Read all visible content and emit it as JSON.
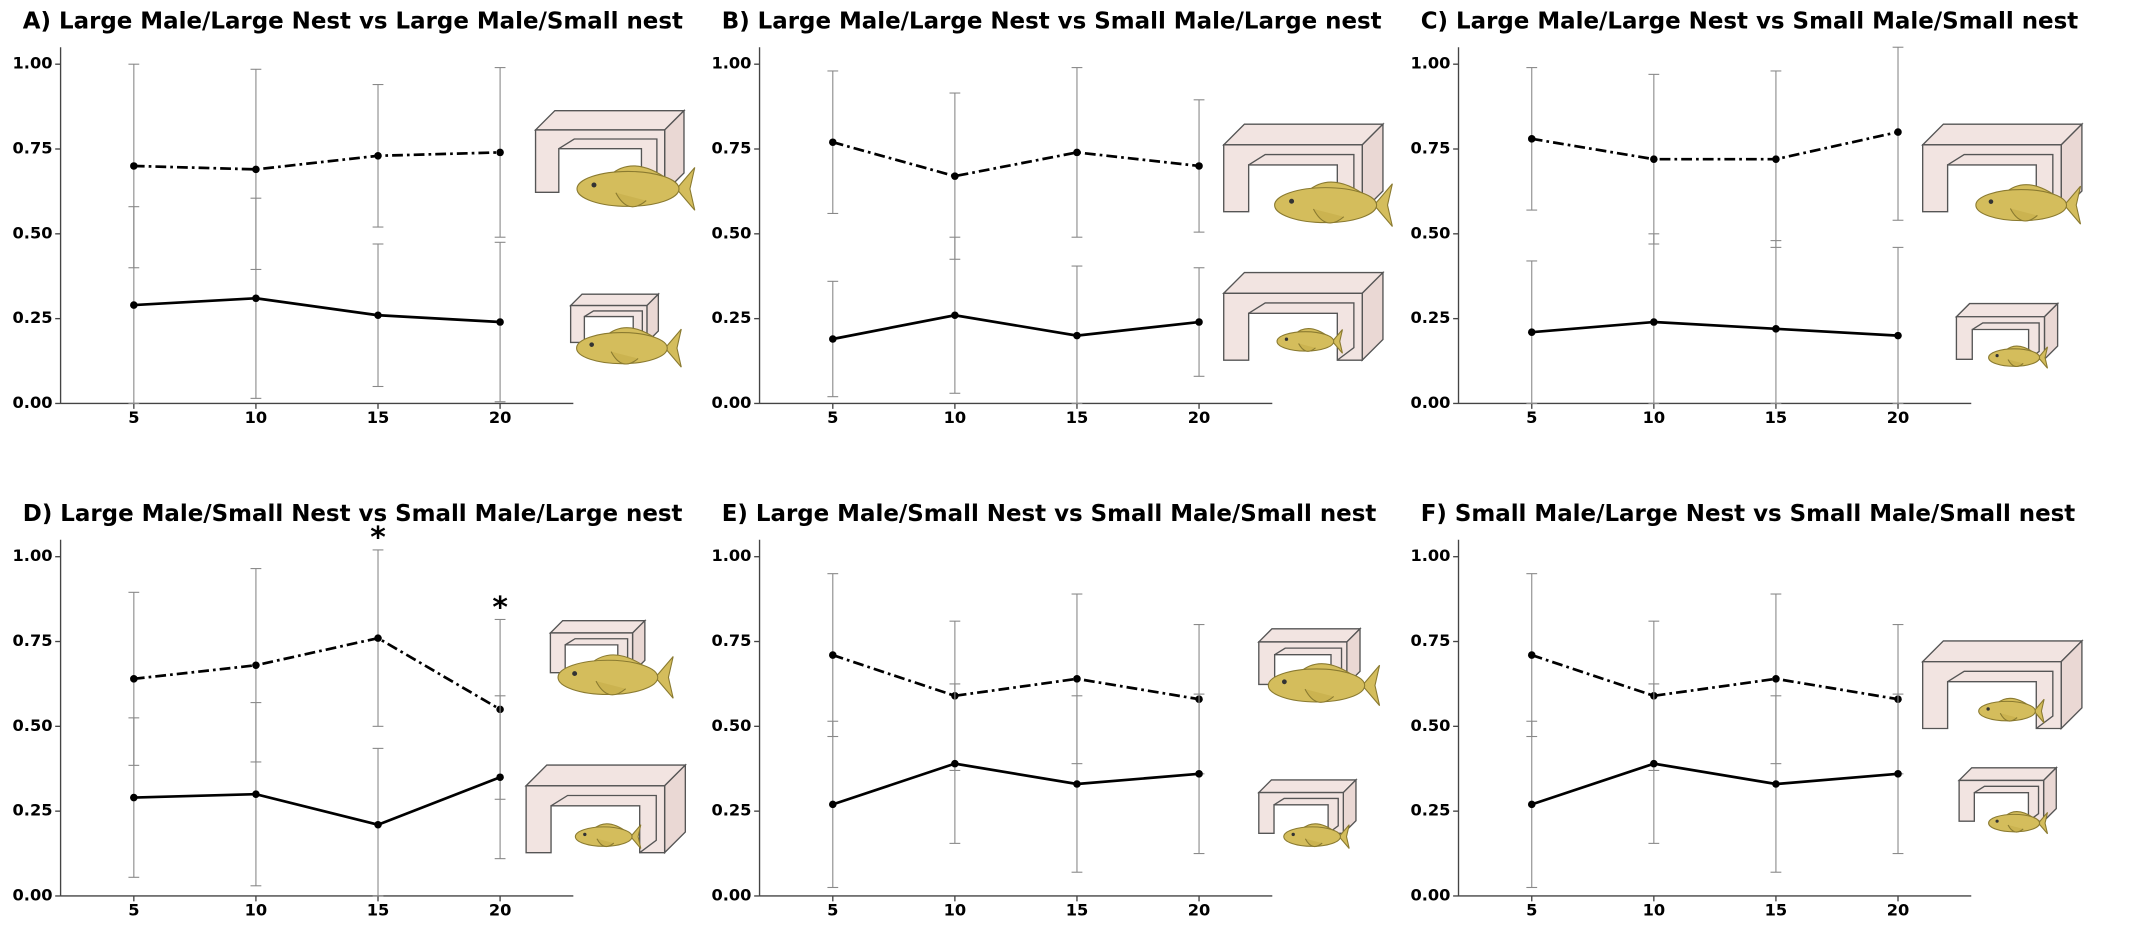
{
  "chart_data": [
    {
      "type": "line",
      "title": "A) Large Male/Large Nest vs Large Male/Small nest",
      "x": [
        5,
        10,
        15,
        20
      ],
      "xlim": [
        2,
        23
      ],
      "xticks": [
        5,
        10,
        15,
        20
      ],
      "ylim": [
        0,
        1.05
      ],
      "yticks": [
        {
          "value": 0,
          "label": "0.00"
        },
        {
          "value": 0.25,
          "label": "0.25"
        },
        {
          "value": 0.5,
          "label": "0.50"
        },
        {
          "value": 0.75,
          "label": "0.75"
        },
        {
          "value": 1,
          "label": "1.00"
        }
      ],
      "series": [
        {
          "color": "#000000",
          "dash": "dashdot",
          "values": [
            0.7,
            0.69,
            0.73,
            0.74
          ],
          "errors": [
            0.3,
            0.295,
            0.21,
            0.25
          ]
        },
        {
          "color": "#000000",
          "dash": "solid",
          "values": [
            0.29,
            0.31,
            0.26,
            0.24
          ],
          "errors": [
            0.29,
            0.295,
            0.21,
            0.235
          ]
        }
      ]
    },
    {
      "type": "line",
      "title": "B) Large Male/Large Nest vs Small Male/Large nest",
      "x": [
        5,
        10,
        15,
        20
      ],
      "xlim": [
        2,
        23
      ],
      "xticks": [
        5,
        10,
        15,
        20
      ],
      "ylim": [
        0,
        1.05
      ],
      "yticks": [
        {
          "value": 0,
          "label": "0.00"
        },
        {
          "value": 0.25,
          "label": "0.25"
        },
        {
          "value": 0.5,
          "label": "0.50"
        },
        {
          "value": 0.75,
          "label": "0.75"
        },
        {
          "value": 1,
          "label": "1.00"
        }
      ],
      "series": [
        {
          "color": "#000000",
          "dash": "dashdot",
          "values": [
            0.77,
            0.67,
            0.74,
            0.7
          ],
          "errors": [
            0.21,
            0.245,
            0.25,
            0.195
          ]
        },
        {
          "color": "#000000",
          "dash": "solid",
          "values": [
            0.19,
            0.26,
            0.2,
            0.24
          ],
          "errors": [
            0.17,
            0.23,
            0.205,
            0.16
          ]
        }
      ]
    },
    {
      "type": "line",
      "title": "C) Large Male/Large Nest vs Small Male/Small nest",
      "x": [
        5,
        10,
        15,
        20
      ],
      "xlim": [
        2,
        23
      ],
      "xticks": [
        5,
        10,
        15,
        20
      ],
      "ylim": [
        0,
        1.05
      ],
      "yticks": [
        {
          "value": 0,
          "label": "0.00"
        },
        {
          "value": 0.25,
          "label": "0.25"
        },
        {
          "value": 0.5,
          "label": "0.50"
        },
        {
          "value": 0.75,
          "label": "0.75"
        },
        {
          "value": 1,
          "label": "1.00"
        }
      ],
      "series": [
        {
          "color": "#000000",
          "dash": "dashdot",
          "values": [
            0.78,
            0.72,
            0.72,
            0.8
          ],
          "errors": [
            0.21,
            0.25,
            0.26,
            0.26
          ]
        },
        {
          "color": "#000000",
          "dash": "solid",
          "values": [
            0.21,
            0.24,
            0.22,
            0.2
          ],
          "errors": [
            0.21,
            0.26,
            0.26,
            0.26
          ]
        }
      ]
    },
    {
      "type": "line",
      "title": "D) Large Male/Small Nest vs Small Male/Large nest",
      "x": [
        5,
        10,
        15,
        20
      ],
      "xlim": [
        2,
        23
      ],
      "xticks": [
        5,
        10,
        15,
        20
      ],
      "ylim": [
        0,
        1.05
      ],
      "yticks": [
        {
          "value": 0,
          "label": "0.00"
        },
        {
          "value": 0.25,
          "label": "0.25"
        },
        {
          "value": 0.5,
          "label": "0.50"
        },
        {
          "value": 0.75,
          "label": "0.75"
        },
        {
          "value": 1,
          "label": "1.00"
        }
      ],
      "series": [
        {
          "color": "#000000",
          "dash": "dashdot",
          "values": [
            0.64,
            0.68,
            0.76,
            0.55
          ],
          "errors": [
            0.255,
            0.285,
            0.26,
            0.265
          ]
        },
        {
          "color": "#000000",
          "dash": "solid",
          "values": [
            0.29,
            0.3,
            0.21,
            0.35
          ],
          "errors": [
            0.235,
            0.27,
            0.225,
            0.24
          ]
        }
      ],
      "annotations": [
        {
          "text": "*",
          "x": 15
        },
        {
          "text": "*",
          "x": 20
        }
      ]
    },
    {
      "type": "line",
      "title": "E) Large Male/Small Nest vs Small Male/Small nest",
      "x": [
        5,
        10,
        15,
        20
      ],
      "xlim": [
        2,
        23
      ],
      "xticks": [
        5,
        10,
        15,
        20
      ],
      "ylim": [
        0,
        1.05
      ],
      "yticks": [
        {
          "value": 0,
          "label": "0.00"
        },
        {
          "value": 0.25,
          "label": "0.25"
        },
        {
          "value": 0.5,
          "label": "0.50"
        },
        {
          "value": 0.75,
          "label": "0.75"
        },
        {
          "value": 1,
          "label": "1.00"
        }
      ],
      "series": [
        {
          "color": "#000000",
          "dash": "dashdot",
          "values": [
            0.71,
            0.59,
            0.64,
            0.58
          ],
          "errors": [
            0.24,
            0.22,
            0.25,
            0.22
          ]
        },
        {
          "color": "#000000",
          "dash": "solid",
          "values": [
            0.27,
            0.39,
            0.33,
            0.36
          ],
          "errors": [
            0.245,
            0.235,
            0.26,
            0.235
          ]
        }
      ]
    },
    {
      "type": "line",
      "title": "F) Small Male/Large Nest vs Small Male/Small nest",
      "x": [
        5,
        10,
        15,
        20
      ],
      "xlim": [
        2,
        23
      ],
      "xticks": [
        5,
        10,
        15,
        20
      ],
      "ylim": [
        0,
        1.05
      ],
      "yticks": [
        {
          "value": 0,
          "label": "0.00"
        },
        {
          "value": 0.25,
          "label": "0.25"
        },
        {
          "value": 0.5,
          "label": "0.50"
        },
        {
          "value": 0.75,
          "label": "0.75"
        },
        {
          "value": 1,
          "label": "1.00"
        }
      ],
      "series": [
        {
          "color": "#000000",
          "dash": "dashdot",
          "values": [
            0.71,
            0.59,
            0.64,
            0.58
          ],
          "errors": [
            0.24,
            0.22,
            0.25,
            0.22
          ]
        },
        {
          "color": "#000000",
          "dash": "solid",
          "values": [
            0.27,
            0.39,
            0.33,
            0.36
          ],
          "errors": [
            0.245,
            0.235,
            0.26,
            0.235
          ]
        }
      ]
    }
  ]
}
